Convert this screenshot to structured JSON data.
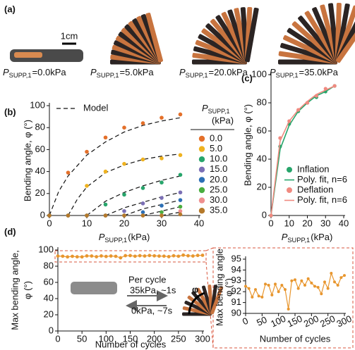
{
  "panel_labels": [
    "(a)",
    "(b)",
    "(c)",
    "(d)"
  ],
  "panel_a": {
    "scale_bar": "1cm",
    "symbol": "P",
    "subscript": "SUPP,1",
    "labels": [
      "=0.0kPa",
      "=5.0kPa",
      "=20.0kPa",
      "=35.0kPa"
    ]
  },
  "chart_data": [
    {
      "type": "scatter",
      "x_label": {
        "symbol": "P",
        "subscript": "SUPP,1",
        "unit": "(kPa)"
      },
      "y_label": "Bending angle, φ (°)",
      "xlim": [
        0,
        40
      ],
      "ylim": [
        0,
        100
      ],
      "xticks": [
        0,
        10,
        20,
        30,
        40
      ],
      "yticks": [
        0,
        20,
        40,
        60,
        80,
        100
      ],
      "x": [
        0,
        5,
        10,
        15,
        20,
        25,
        30,
        35
      ],
      "legend_title": {
        "symbol": "P",
        "subscript": "SUPP,1",
        "unit": "(kPa)"
      },
      "series": [
        {
          "name": "0.0",
          "color": "#e4702a",
          "values": [
            0,
            39,
            58,
            71,
            80,
            84,
            89,
            92
          ]
        },
        {
          "name": "5.0",
          "color": "#efb21f",
          "values": [
            0,
            0,
            27,
            40,
            47,
            51,
            52,
            55
          ]
        },
        {
          "name": "10.0",
          "color": "#27a56b",
          "values": [
            0,
            0,
            0,
            10,
            19,
            25,
            30,
            37
          ]
        },
        {
          "name": "15.0",
          "color": "#7b6fb5",
          "values": [
            0,
            0,
            0,
            0,
            4,
            11,
            16,
            21
          ]
        },
        {
          "name": "20.0",
          "color": "#2c6fb5",
          "values": [
            0,
            0,
            0,
            0,
            0,
            3,
            9,
            14
          ]
        },
        {
          "name": "25.0",
          "color": "#4aad3f",
          "values": [
            0,
            0,
            0,
            0,
            0,
            0,
            3,
            8
          ]
        },
        {
          "name": "30.0",
          "color": "#ef8f8f",
          "values": [
            0,
            0,
            0,
            0,
            0,
            0,
            0,
            4
          ]
        },
        {
          "name": "35.0",
          "color": "#b5792a",
          "values": [
            0,
            0,
            0,
            0,
            0,
            0,
            0,
            1
          ]
        }
      ],
      "model": {
        "name": "Model",
        "curves": [
          {
            "x": [
              0,
              2.5,
              5,
              10,
              15,
              20,
              25,
              30,
              35
            ],
            "y": [
              0,
              22,
              36,
              55,
              67,
              76,
              82,
              86,
              89
            ]
          },
          {
            "x": [
              5,
              7.5,
              10,
              15,
              20,
              25,
              30,
              35
            ],
            "y": [
              0,
              15,
              26,
              39,
              46,
              51,
              54,
              56
            ]
          },
          {
            "x": [
              10,
              15,
              20,
              25,
              30,
              35
            ],
            "y": [
              0,
              13,
              21,
              27,
              32,
              36
            ]
          },
          {
            "x": [
              15,
              20,
              25,
              30,
              35
            ],
            "y": [
              0,
              7,
              12,
              17,
              21
            ]
          },
          {
            "x": [
              20,
              25,
              30,
              35
            ],
            "y": [
              0,
              6,
              10,
              14
            ]
          },
          {
            "x": [
              25,
              30,
              35
            ],
            "y": [
              0,
              4,
              8
            ]
          },
          {
            "x": [
              30,
              35
            ],
            "y": [
              0,
              3
            ]
          }
        ]
      }
    },
    {
      "type": "scatter",
      "x_label": {
        "symbol": "P",
        "subscript": "SUPP,1",
        "unit": "(kPa)"
      },
      "y_label": "Bending angle, φ (°)",
      "xlim": [
        0,
        40
      ],
      "ylim": [
        0,
        100
      ],
      "xticks": [
        0,
        10,
        20,
        30,
        40
      ],
      "yticks": [
        0,
        20,
        40,
        60,
        80,
        100
      ],
      "x": [
        0,
        5,
        10,
        15,
        20,
        25,
        30,
        35
      ],
      "series": [
        {
          "name": "Inflation",
          "color": "#27a56b",
          "style": "marker",
          "values": [
            0,
            49,
            65,
            74,
            80,
            84,
            88,
            92
          ]
        },
        {
          "name": "Poly. fit, n=6",
          "color": "#27a56b",
          "style": "line",
          "values": [
            0,
            47,
            64,
            74,
            80,
            85,
            88,
            92
          ]
        },
        {
          "name": "Deflation",
          "color": "#f08a80",
          "style": "marker",
          "values": [
            0,
            55,
            67,
            75,
            80,
            85,
            90,
            92
          ]
        },
        {
          "name": "Poly. fit, n=6",
          "color": "#f08a80",
          "style": "line",
          "values": [
            0,
            53,
            67,
            75,
            81,
            86,
            89,
            92
          ]
        }
      ]
    },
    {
      "type": "line",
      "x_label": "Number of cycles",
      "y_label": [
        "Max bending angle,",
        "φ (°)"
      ],
      "xlim": [
        0,
        300
      ],
      "ylim": [
        0,
        100
      ],
      "xticks": [
        0,
        50,
        100,
        150,
        200,
        250,
        300
      ],
      "yticks": [
        0,
        20,
        40,
        60,
        80,
        100
      ],
      "color": "#e8962e",
      "x": [
        0,
        10,
        20,
        30,
        40,
        50,
        60,
        70,
        80,
        90,
        100,
        110,
        120,
        130,
        140,
        150,
        160,
        170,
        180,
        190,
        200,
        210,
        220,
        230,
        240,
        250,
        260,
        270,
        280,
        290,
        300
      ],
      "values": [
        92.5,
        92.3,
        91.5,
        92.2,
        91.6,
        91.5,
        92.7,
        92.6,
        91.7,
        92.7,
        92.0,
        92.6,
        92.2,
        90.4,
        93.0,
        93.1,
        92.3,
        93.0,
        92.6,
        93.2,
        92.8,
        92.5,
        92.4,
        91.8,
        92.9,
        92.3,
        93.7,
        92.9,
        92.6,
        93.3,
        93.5
      ],
      "annotations": {
        "cycle": "Per cycle",
        "inflate": "35kPa, ~1s",
        "deflate": "0kPa, ~7s",
        "angle": "φ"
      },
      "inset": {
        "xlim": [
          0,
          300
        ],
        "ylim": [
          90,
          95
        ],
        "xticks": [
          0,
          50,
          100,
          150,
          200,
          250,
          300
        ],
        "yticks": [
          90,
          91,
          92,
          93,
          94,
          95
        ],
        "x_label": "Number of cycles",
        "y_label": [
          "Max bending angle",
          "φ (°)"
        ]
      }
    }
  ]
}
